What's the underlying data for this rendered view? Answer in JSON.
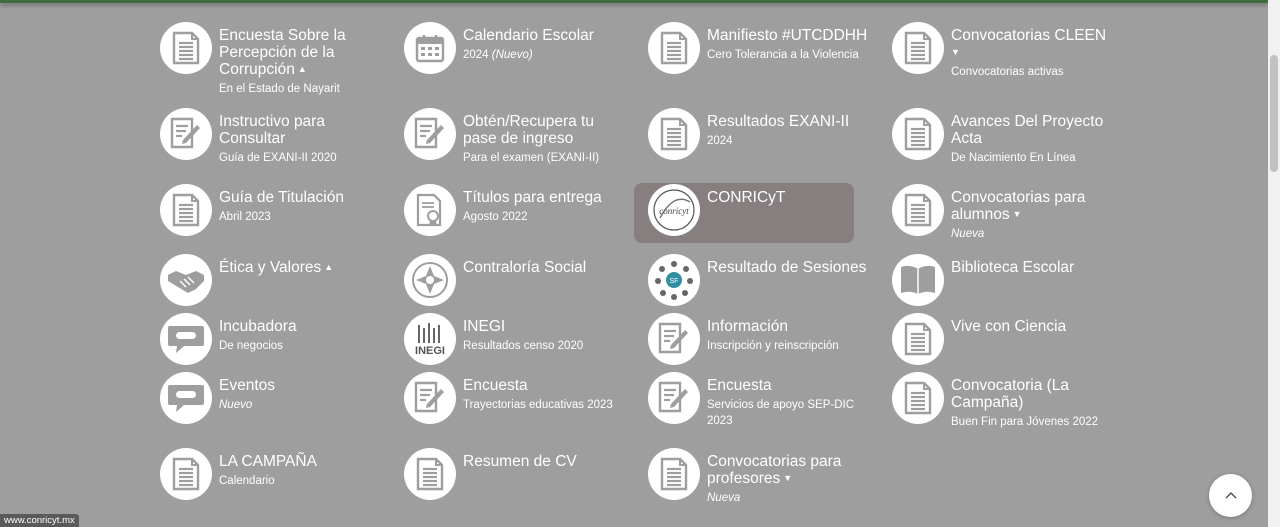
{
  "items": [
    {
      "icon": "document-icon",
      "title_lines": [
        "Encuesta Sobre la",
        "Percepción de la",
        "Corrupción"
      ],
      "caret": "up",
      "sub": "En el Estado de Nayarit"
    },
    {
      "icon": "calendar-icon",
      "title_lines": [
        "Calendario Escolar"
      ],
      "sub_plain": "2024 ",
      "sub_italic": "(Nuevo)"
    },
    {
      "icon": "document-icon",
      "title_lines": [
        "Manifiesto #UTCDDHH"
      ],
      "sub": "Cero Tolerancia a la Violencia"
    },
    {
      "icon": "document-icon",
      "title_lines": [
        "Convocatorias CLEEN"
      ],
      "caret_line": "down",
      "sub": "Convocatorias activas"
    },
    {
      "icon": "edit-document-icon",
      "title_lines": [
        "Instructivo para",
        "Consultar"
      ],
      "sub": "Guía de EXANI-II 2020"
    },
    {
      "icon": "edit-document-icon",
      "title_lines": [
        "Obtén/Recupera tu",
        "pase de ingreso"
      ],
      "sub": "Para el examen (EXANI-II)"
    },
    {
      "icon": "document-icon",
      "title_lines": [
        "Resultados EXANI-II"
      ],
      "sub": "2024"
    },
    {
      "icon": "document-icon",
      "title_lines": [
        "Avances Del Proyecto",
        "Acta"
      ],
      "sub": "De Nacimiento En Línea"
    },
    {
      "icon": "document-icon",
      "title_lines": [
        "Guía de Titulación"
      ],
      "sub": "Abril 2023"
    },
    {
      "icon": "certificate-icon",
      "title_lines": [
        "Títulos para entrega"
      ],
      "sub": "Agosto 2022"
    },
    {
      "icon": "conricyt-logo-icon",
      "title_lines": [
        "CONRICyT"
      ],
      "highlight": true
    },
    {
      "icon": "document-icon",
      "title_lines": [
        "Convocatorias para",
        "alumnos"
      ],
      "caret": "down",
      "sub_italic_only": "Nueva"
    },
    {
      "icon": "handshake-icon",
      "title_lines": [
        "Ética y Valores"
      ],
      "caret": "up"
    },
    {
      "icon": "social-watch-icon",
      "title_lines": [
        "Contraloría Social"
      ]
    },
    {
      "icon": "people-circle-icon",
      "title_lines": [
        "Resultado de Sesiones"
      ]
    },
    {
      "icon": "book-icon",
      "title_lines": [
        "Biblioteca Escolar"
      ]
    },
    {
      "icon": "speech-bubble-icon",
      "title_lines": [
        "Incubadora"
      ],
      "sub": "De negocios"
    },
    {
      "icon": "inegi-logo-icon",
      "title_lines": [
        "INEGI"
      ],
      "sub": "Resultados censo 2020"
    },
    {
      "icon": "edit-document-icon",
      "title_lines": [
        "Información"
      ],
      "sub": "Inscripción y reinscripción"
    },
    {
      "icon": "document-icon",
      "title_lines": [
        "Vive con Ciencia"
      ]
    },
    {
      "icon": "speech-bubble-icon",
      "title_lines": [
        "Eventos"
      ],
      "sub_italic_only": "Nuevo"
    },
    {
      "icon": "edit-document-icon",
      "title_lines": [
        "Encuesta"
      ],
      "sub": "Trayectorias educativas 2023"
    },
    {
      "icon": "edit-document-icon",
      "title_lines": [
        "Encuesta"
      ],
      "sub_lines": [
        "Servicios de apoyo SEP-DIC",
        "2023"
      ]
    },
    {
      "icon": "document-icon",
      "title_lines": [
        "Convocatoria (La",
        "Campaña)"
      ],
      "sub": "Buen Fin para Jóvenes 2022"
    },
    {
      "icon": "document-icon",
      "title_lines": [
        "LA CAMPAÑA"
      ],
      "sub": "Calendario"
    },
    {
      "icon": "document-icon",
      "title_lines": [
        "Resumen de CV"
      ]
    },
    {
      "icon": "document-icon",
      "title_lines": [
        "Convocatorias para",
        "profesores"
      ],
      "caret": "down",
      "sub_italic_only": "Nueva"
    }
  ],
  "status_url": "www.conricyt.mx",
  "back_to_top": "chevron-up-icon"
}
